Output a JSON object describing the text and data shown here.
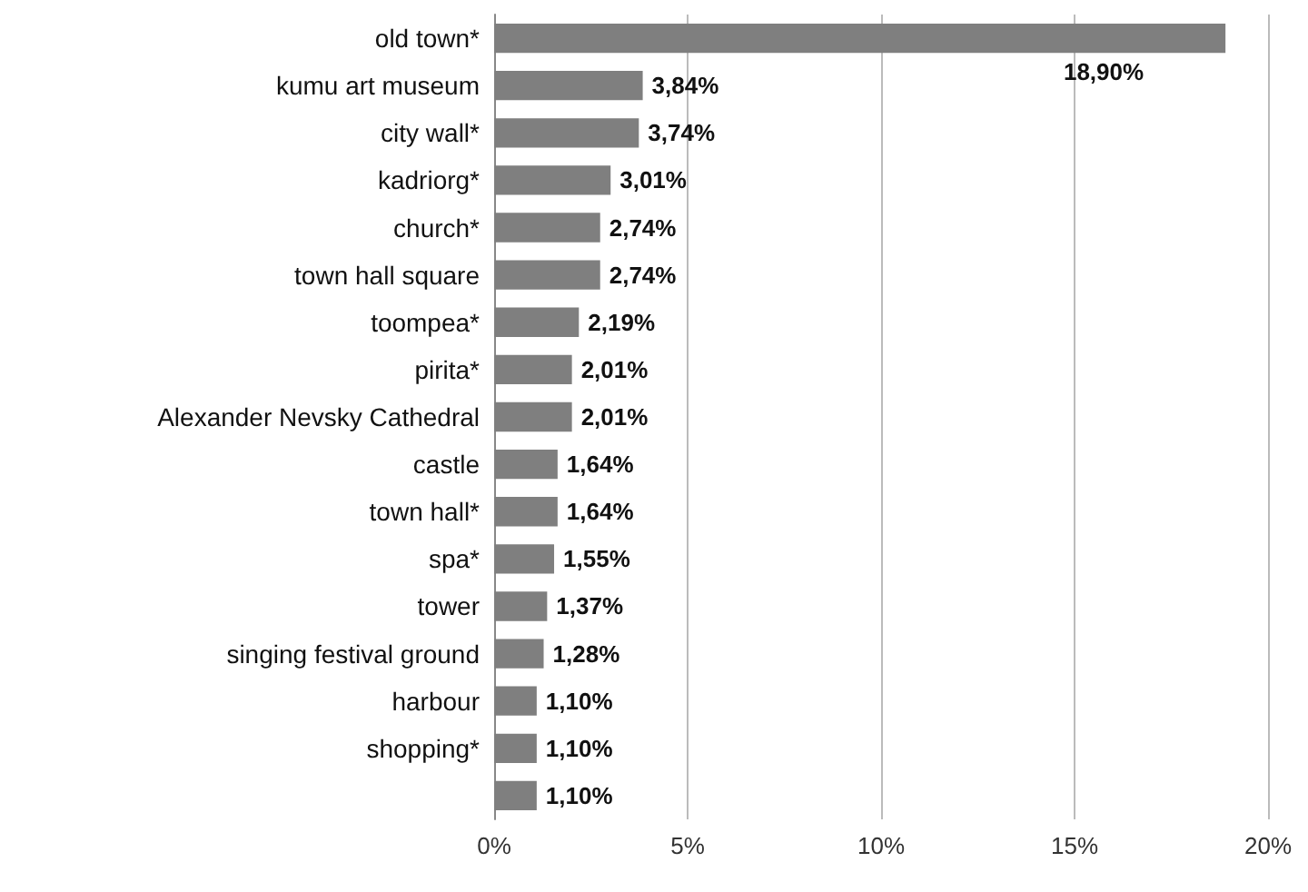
{
  "chart_data": {
    "type": "bar",
    "orientation": "horizontal",
    "categories": [
      "old town*",
      "kumu art museum",
      "city wall*",
      "kadriorg*",
      "church*",
      "town hall square",
      "toompea*",
      "pirita*",
      "Alexander Nevsky Cathedral",
      "castle",
      "town hall*",
      "spa*",
      "tower",
      "singing festival ground",
      "harbour",
      "shopping*",
      null
    ],
    "values": [
      18.9,
      3.84,
      3.74,
      3.01,
      2.74,
      2.74,
      2.19,
      2.01,
      2.01,
      1.64,
      1.64,
      1.55,
      1.37,
      1.28,
      1.1,
      1.1,
      1.1
    ],
    "value_labels": [
      "18,90%",
      "3,84%",
      "3,74%",
      "3,01%",
      "2,74%",
      "2,74%",
      "2,19%",
      "2,01%",
      "2,01%",
      "1,64%",
      "1,64%",
      "1,55%",
      "1,37%",
      "1,28%",
      "1,10%",
      "1,10%",
      "1,10%"
    ],
    "color": "#7f7f7f",
    "xlim": [
      0,
      20
    ],
    "xticks": [
      {
        "value": 0,
        "label": "0%"
      },
      {
        "value": 5,
        "label": "5%"
      },
      {
        "value": 10,
        "label": "10%"
      },
      {
        "value": 15,
        "label": "15%"
      },
      {
        "value": 20,
        "label": "20%"
      }
    ],
    "grid": "x"
  }
}
